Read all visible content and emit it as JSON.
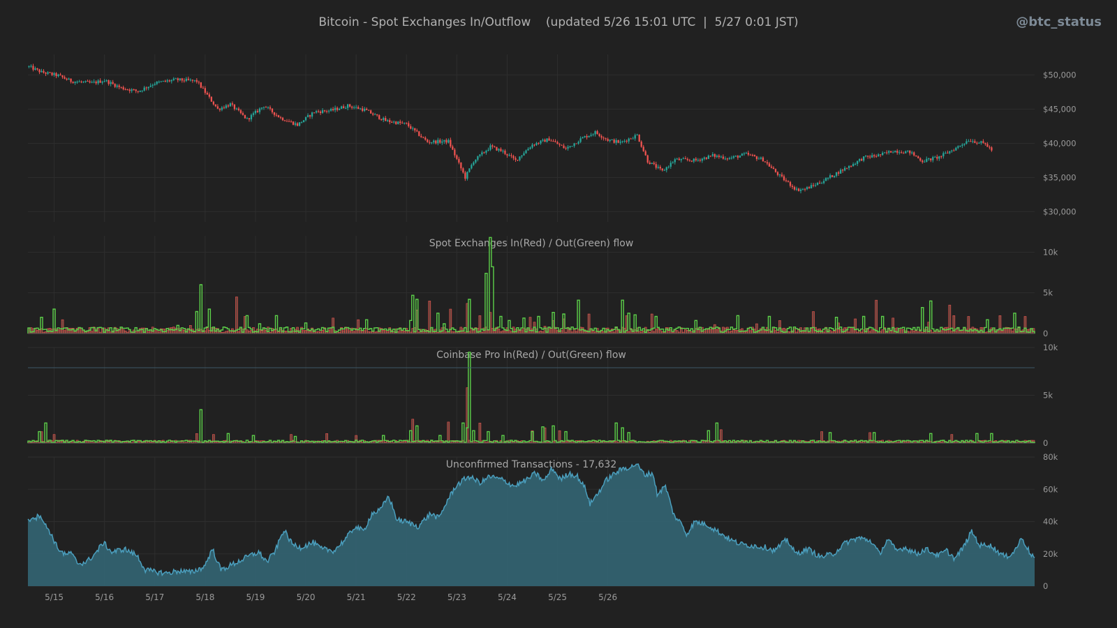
{
  "header": {
    "title": "Bitcoin - Spot Exchanges In/Outflow    (updated 5/26 15:01 UTC  |  5/27 0:01 JST)",
    "handle": "@btc_status"
  },
  "chart_data": [
    {
      "type": "candlestick",
      "title": "",
      "ylim": [
        28500,
        53000
      ],
      "yticks": [
        "$30,000",
        "$35,000",
        "$40,000",
        "$45,000",
        "$50,000"
      ],
      "ytick_values": [
        30000,
        35000,
        40000,
        45000,
        50000
      ],
      "colors": {
        "up": "#26a69a",
        "down": "#ef5350"
      },
      "x_start": "5/14 12:00",
      "interval_hours": 1,
      "close_anchors": [
        [
          0,
          51200
        ],
        [
          6,
          50400
        ],
        [
          14,
          49900
        ],
        [
          20,
          49100
        ],
        [
          30,
          48800
        ],
        [
          36,
          49200
        ],
        [
          44,
          48100
        ],
        [
          52,
          47600
        ],
        [
          60,
          48800
        ],
        [
          70,
          49300
        ],
        [
          80,
          49100
        ],
        [
          90,
          45000
        ],
        [
          96,
          45700
        ],
        [
          104,
          43500
        ],
        [
          112,
          45500
        ],
        [
          120,
          43700
        ],
        [
          128,
          42700
        ],
        [
          136,
          44600
        ],
        [
          144,
          44800
        ],
        [
          152,
          45500
        ],
        [
          160,
          44900
        ],
        [
          170,
          43300
        ],
        [
          180,
          42800
        ],
        [
          190,
          40200
        ],
        [
          200,
          40300
        ],
        [
          208,
          35000
        ],
        [
          212,
          37400
        ],
        [
          220,
          39500
        ],
        [
          226,
          38800
        ],
        [
          232,
          37500
        ],
        [
          240,
          39800
        ],
        [
          248,
          40600
        ],
        [
          256,
          39200
        ],
        [
          264,
          40800
        ],
        [
          270,
          41600
        ],
        [
          276,
          40500
        ],
        [
          282,
          40100
        ],
        [
          290,
          41200
        ],
        [
          295,
          37400
        ],
        [
          302,
          35900
        ],
        [
          308,
          37600
        ],
        [
          318,
          37500
        ],
        [
          326,
          38200
        ],
        [
          334,
          37800
        ],
        [
          342,
          38400
        ],
        [
          350,
          37600
        ],
        [
          358,
          35200
        ],
        [
          366,
          33200
        ],
        [
          370,
          33300
        ],
        [
          378,
          34400
        ],
        [
          386,
          35800
        ],
        [
          392,
          36800
        ],
        [
          398,
          37900
        ],
        [
          406,
          38300
        ],
        [
          412,
          38900
        ],
        [
          420,
          38700
        ],
        [
          426,
          37400
        ],
        [
          434,
          38000
        ],
        [
          442,
          39300
        ],
        [
          448,
          40500
        ],
        [
          456,
          39900
        ],
        [
          459,
          39000
        ]
      ]
    },
    {
      "type": "bar",
      "title": "Spot Exchanges  In(Red) / Out(Green) flow",
      "ylim": [
        0,
        12000
      ],
      "yticks": [
        "0",
        "5k",
        "10k"
      ],
      "ytick_values": [
        0,
        5000,
        10000
      ],
      "series": [
        {
          "name": "In",
          "color": "#ef5350",
          "spikes": [
            [
              16,
              1700
            ],
            [
              77,
              1000
            ],
            [
              99,
              4500
            ],
            [
              103,
              2100
            ],
            [
              145,
              1900
            ],
            [
              157,
              1700
            ],
            [
              185,
              2900
            ],
            [
              191,
              4000
            ],
            [
              201,
              3000
            ],
            [
              209,
              3700
            ],
            [
              215,
              2200
            ],
            [
              220,
              2600
            ],
            [
              239,
              2000
            ],
            [
              241,
              1400
            ],
            [
              246,
              900
            ],
            [
              250,
              1600
            ],
            [
              255,
              1800
            ],
            [
              267,
              2400
            ],
            [
              285,
              2200
            ],
            [
              297,
              2400
            ],
            [
              327,
              1100
            ],
            [
              347,
              1200
            ],
            [
              358,
              1600
            ],
            [
              374,
              2700
            ],
            [
              386,
              1300
            ],
            [
              394,
              1800
            ],
            [
              404,
              4100
            ],
            [
              412,
              1900
            ],
            [
              429,
              1400
            ],
            [
              439,
              3500
            ],
            [
              441,
              2200
            ],
            [
              448,
              2100
            ],
            [
              463,
              2200
            ],
            [
              475,
              2100
            ],
            [
              486,
              3400
            ]
          ],
          "values_note": "hourly bars"
        },
        {
          "name": "Out",
          "color": "#5dd14a",
          "spikes": [
            [
              6,
              2000
            ],
            [
              12,
              3000
            ],
            [
              71,
              1000
            ],
            [
              80,
              2700
            ],
            [
              82,
              6000
            ],
            [
              86,
              3000
            ],
            [
              104,
              2200
            ],
            [
              110,
              1200
            ],
            [
              118,
              2200
            ],
            [
              132,
              1300
            ],
            [
              161,
              1700
            ],
            [
              182,
              1600
            ],
            [
              183,
              4700
            ],
            [
              185,
              4200
            ],
            [
              195,
              2500
            ],
            [
              198,
              1200
            ],
            [
              210,
              4200
            ],
            [
              218,
              7400
            ],
            [
              220,
              11800
            ],
            [
              221,
              8200
            ],
            [
              225,
              2100
            ],
            [
              229,
              1600
            ],
            [
              236,
              1900
            ],
            [
              243,
              2100
            ],
            [
              250,
              2600
            ],
            [
              255,
              2400
            ],
            [
              262,
              4100
            ],
            [
              283,
              4100
            ],
            [
              286,
              2500
            ],
            [
              289,
              2300
            ],
            [
              299,
              2100
            ],
            [
              318,
              1600
            ],
            [
              338,
              2200
            ],
            [
              353,
              2100
            ],
            [
              365,
              800
            ],
            [
              385,
              2000
            ],
            [
              398,
              2100
            ],
            [
              407,
              2100
            ],
            [
              426,
              3200
            ],
            [
              430,
              4000
            ],
            [
              457,
              1700
            ],
            [
              470,
              2500
            ],
            [
              483,
              1400
            ]
          ]
        }
      ]
    },
    {
      "type": "bar",
      "title": "Coinbase Pro  In(Red) / Out(Green) flow",
      "ylim": [
        0,
        10000
      ],
      "yticks": [
        "0",
        "5k",
        "10k"
      ],
      "ytick_values": [
        0,
        5000,
        10000
      ],
      "series": [
        {
          "name": "In",
          "color": "#ef5350",
          "spikes": [
            [
              6,
              1200
            ],
            [
              12,
              900
            ],
            [
              80,
              1000
            ],
            [
              88,
              900
            ],
            [
              125,
              900
            ],
            [
              142,
              1000
            ],
            [
              156,
              800
            ],
            [
              183,
              2500
            ],
            [
              200,
              2200
            ],
            [
              209,
              5800
            ],
            [
              215,
              2100
            ],
            [
              240,
              1300
            ],
            [
              246,
              1600
            ],
            [
              253,
              1300
            ],
            [
              330,
              1400
            ],
            [
              378,
              1200
            ],
            [
              401,
              1100
            ],
            [
              440,
              900
            ]
          ]
        },
        {
          "name": "Out",
          "color": "#5dd14a",
          "spikes": [
            [
              5,
              1200
            ],
            [
              8,
              2100
            ],
            [
              82,
              3500
            ],
            [
              95,
              1000
            ],
            [
              107,
              800
            ],
            [
              127,
              700
            ],
            [
              169,
              800
            ],
            [
              182,
              1300
            ],
            [
              185,
              1800
            ],
            [
              196,
              800
            ],
            [
              207,
              2100
            ],
            [
              209,
              1600
            ],
            [
              210,
              9500
            ],
            [
              212,
              1300
            ],
            [
              219,
              1200
            ],
            [
              226,
              800
            ],
            [
              240,
              1200
            ],
            [
              245,
              1700
            ],
            [
              250,
              1800
            ],
            [
              256,
              1200
            ],
            [
              280,
              2100
            ],
            [
              283,
              1600
            ],
            [
              286,
              1100
            ],
            [
              324,
              1300
            ],
            [
              328,
              2100
            ],
            [
              382,
              1100
            ],
            [
              403,
              1100
            ],
            [
              430,
              1000
            ],
            [
              452,
              1000
            ],
            [
              459,
              1000
            ]
          ]
        }
      ]
    },
    {
      "type": "area",
      "title": "Unconfirmed Transactions  -  17,632",
      "ylim": [
        0,
        80000
      ],
      "yticks": [
        "0",
        "20k",
        "40k",
        "60k",
        "80k"
      ],
      "ytick_values": [
        0,
        20000,
        40000,
        60000,
        80000
      ],
      "colors": {
        "line": "#4b9fbe",
        "fill": "#336573"
      },
      "anchors": [
        [
          0,
          40000
        ],
        [
          2,
          43000
        ],
        [
          4,
          42500
        ],
        [
          6,
          44500
        ],
        [
          8,
          38000
        ],
        [
          10,
          35000
        ],
        [
          14,
          24000
        ],
        [
          18,
          19000
        ],
        [
          20,
          21000
        ],
        [
          24,
          14000
        ],
        [
          28,
          15000
        ],
        [
          32,
          20000
        ],
        [
          36,
          27000
        ],
        [
          40,
          21000
        ],
        [
          46,
          23000
        ],
        [
          52,
          19000
        ],
        [
          56,
          10000
        ],
        [
          60,
          9000
        ],
        [
          66,
          8000
        ],
        [
          72,
          9500
        ],
        [
          78,
          8500
        ],
        [
          84,
          12000
        ],
        [
          88,
          23000
        ],
        [
          92,
          10000
        ],
        [
          100,
          15000
        ],
        [
          106,
          19000
        ],
        [
          110,
          21000
        ],
        [
          114,
          15000
        ],
        [
          118,
          22000
        ],
        [
          122,
          35000
        ],
        [
          126,
          26000
        ],
        [
          130,
          24000
        ],
        [
          136,
          27000
        ],
        [
          140,
          23000
        ],
        [
          146,
          22000
        ],
        [
          152,
          30000
        ],
        [
          156,
          37000
        ],
        [
          160,
          34000
        ],
        [
          164,
          45000
        ],
        [
          168,
          47000
        ],
        [
          172,
          56000
        ],
        [
          176,
          41000
        ],
        [
          180,
          40000
        ],
        [
          186,
          37000
        ],
        [
          192,
          45000
        ],
        [
          196,
          42000
        ],
        [
          200,
          53000
        ],
        [
          204,
          62000
        ],
        [
          210,
          68000
        ],
        [
          216,
          64000
        ],
        [
          220,
          68000
        ],
        [
          226,
          66000
        ],
        [
          232,
          62000
        ],
        [
          238,
          66000
        ],
        [
          242,
          70000
        ],
        [
          246,
          65000
        ],
        [
          250,
          73000
        ],
        [
          254,
          66000
        ],
        [
          258,
          70000
        ],
        [
          262,
          68000
        ],
        [
          266,
          60000
        ],
        [
          268,
          51000
        ],
        [
          272,
          58000
        ],
        [
          276,
          66000
        ],
        [
          280,
          70000
        ],
        [
          284,
          73000
        ],
        [
          288,
          74000
        ],
        [
          290,
          76000
        ],
        [
          294,
          69000
        ],
        [
          298,
          70000
        ],
        [
          300,
          57000
        ],
        [
          304,
          62000
        ],
        [
          308,
          44000
        ],
        [
          312,
          38000
        ],
        [
          314,
          32000
        ],
        [
          318,
          40000
        ],
        [
          324,
          38000
        ],
        [
          330,
          33000
        ],
        [
          336,
          28000
        ],
        [
          340,
          26000
        ],
        [
          346,
          25000
        ],
        [
          352,
          24000
        ],
        [
          356,
          22000
        ],
        [
          362,
          29000
        ],
        [
          366,
          20000
        ],
        [
          372,
          23000
        ],
        [
          378,
          18000
        ],
        [
          384,
          20000
        ],
        [
          390,
          27000
        ],
        [
          396,
          30000
        ],
        [
          402,
          28000
        ],
        [
          406,
          20000
        ],
        [
          410,
          29000
        ],
        [
          414,
          22000
        ],
        [
          418,
          24000
        ],
        [
          424,
          20000
        ],
        [
          428,
          23000
        ],
        [
          434,
          19000
        ],
        [
          438,
          22000
        ],
        [
          442,
          17000
        ],
        [
          446,
          24000
        ],
        [
          450,
          34000
        ],
        [
          454,
          25000
        ],
        [
          458,
          26000
        ],
        [
          462,
          22000
        ],
        [
          466,
          18000
        ],
        [
          470,
          21000
        ],
        [
          474,
          30000
        ],
        [
          478,
          20000
        ],
        [
          480,
          17632
        ]
      ]
    }
  ],
  "x_axis": {
    "labels": [
      "5/15",
      "5/16",
      "5/17",
      "5/18",
      "5/19",
      "5/20",
      "5/21",
      "5/22",
      "5/23",
      "5/24",
      "5/25",
      "5/26"
    ]
  }
}
